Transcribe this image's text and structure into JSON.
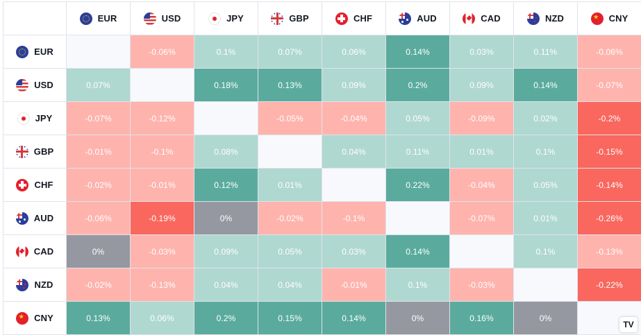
{
  "currencies": [
    {
      "code": "EUR",
      "flag": "eu-flag-icon"
    },
    {
      "code": "USD",
      "flag": "us-flag-icon"
    },
    {
      "code": "JPY",
      "flag": "jp-flag-icon"
    },
    {
      "code": "GBP",
      "flag": "gb-flag-icon"
    },
    {
      "code": "CHF",
      "flag": "ch-flag-icon"
    },
    {
      "code": "AUD",
      "flag": "au-flag-icon"
    },
    {
      "code": "CAD",
      "flag": "ca-flag-icon"
    },
    {
      "code": "NZD",
      "flag": "nz-flag-icon"
    },
    {
      "code": "CNY",
      "flag": "cn-flag-icon"
    }
  ],
  "matrix": [
    [
      null,
      "-0.06%",
      "0.1%",
      "0.07%",
      "0.06%",
      "0.14%",
      "0.03%",
      "0.11%",
      "-0.06%"
    ],
    [
      "0.07%",
      null,
      "0.18%",
      "0.13%",
      "0.09%",
      "0.2%",
      "0.09%",
      "0.14%",
      "-0.07%"
    ],
    [
      "-0.07%",
      "-0.12%",
      null,
      "-0.05%",
      "-0.04%",
      "0.05%",
      "-0.09%",
      "0.02%",
      "-0.2%"
    ],
    [
      "-0.01%",
      "-0.1%",
      "0.08%",
      null,
      "0.04%",
      "0.11%",
      "0.01%",
      "0.1%",
      "-0.15%"
    ],
    [
      "-0.02%",
      "-0.01%",
      "0.12%",
      "0.01%",
      null,
      "0.22%",
      "-0.04%",
      "0.05%",
      "-0.14%"
    ],
    [
      "-0.06%",
      "-0.19%",
      "0%",
      "-0.02%",
      "-0.1%",
      null,
      "-0.07%",
      "0.01%",
      "-0.26%"
    ],
    [
      "0%",
      "-0.03%",
      "0.09%",
      "0.05%",
      "0.03%",
      "0.14%",
      null,
      "0.1%",
      "-0.13%"
    ],
    [
      "-0.02%",
      "-0.13%",
      "0.04%",
      "0.04%",
      "-0.01%",
      "0.1%",
      "-0.03%",
      null,
      "-0.22%"
    ],
    [
      "0.13%",
      "0.06%",
      "0.2%",
      "0.15%",
      "0.14%",
      "0%",
      "0.16%",
      "0%",
      null
    ]
  ],
  "colors": {
    "strong_positive": "#5aab9d",
    "light_positive": "#afd8d0",
    "neutral": "#9598a1",
    "light_negative": "#feb3ad",
    "strong_negative": "#f9675e",
    "diagonal": "#f8f9fd"
  },
  "logo_text": "TV"
}
